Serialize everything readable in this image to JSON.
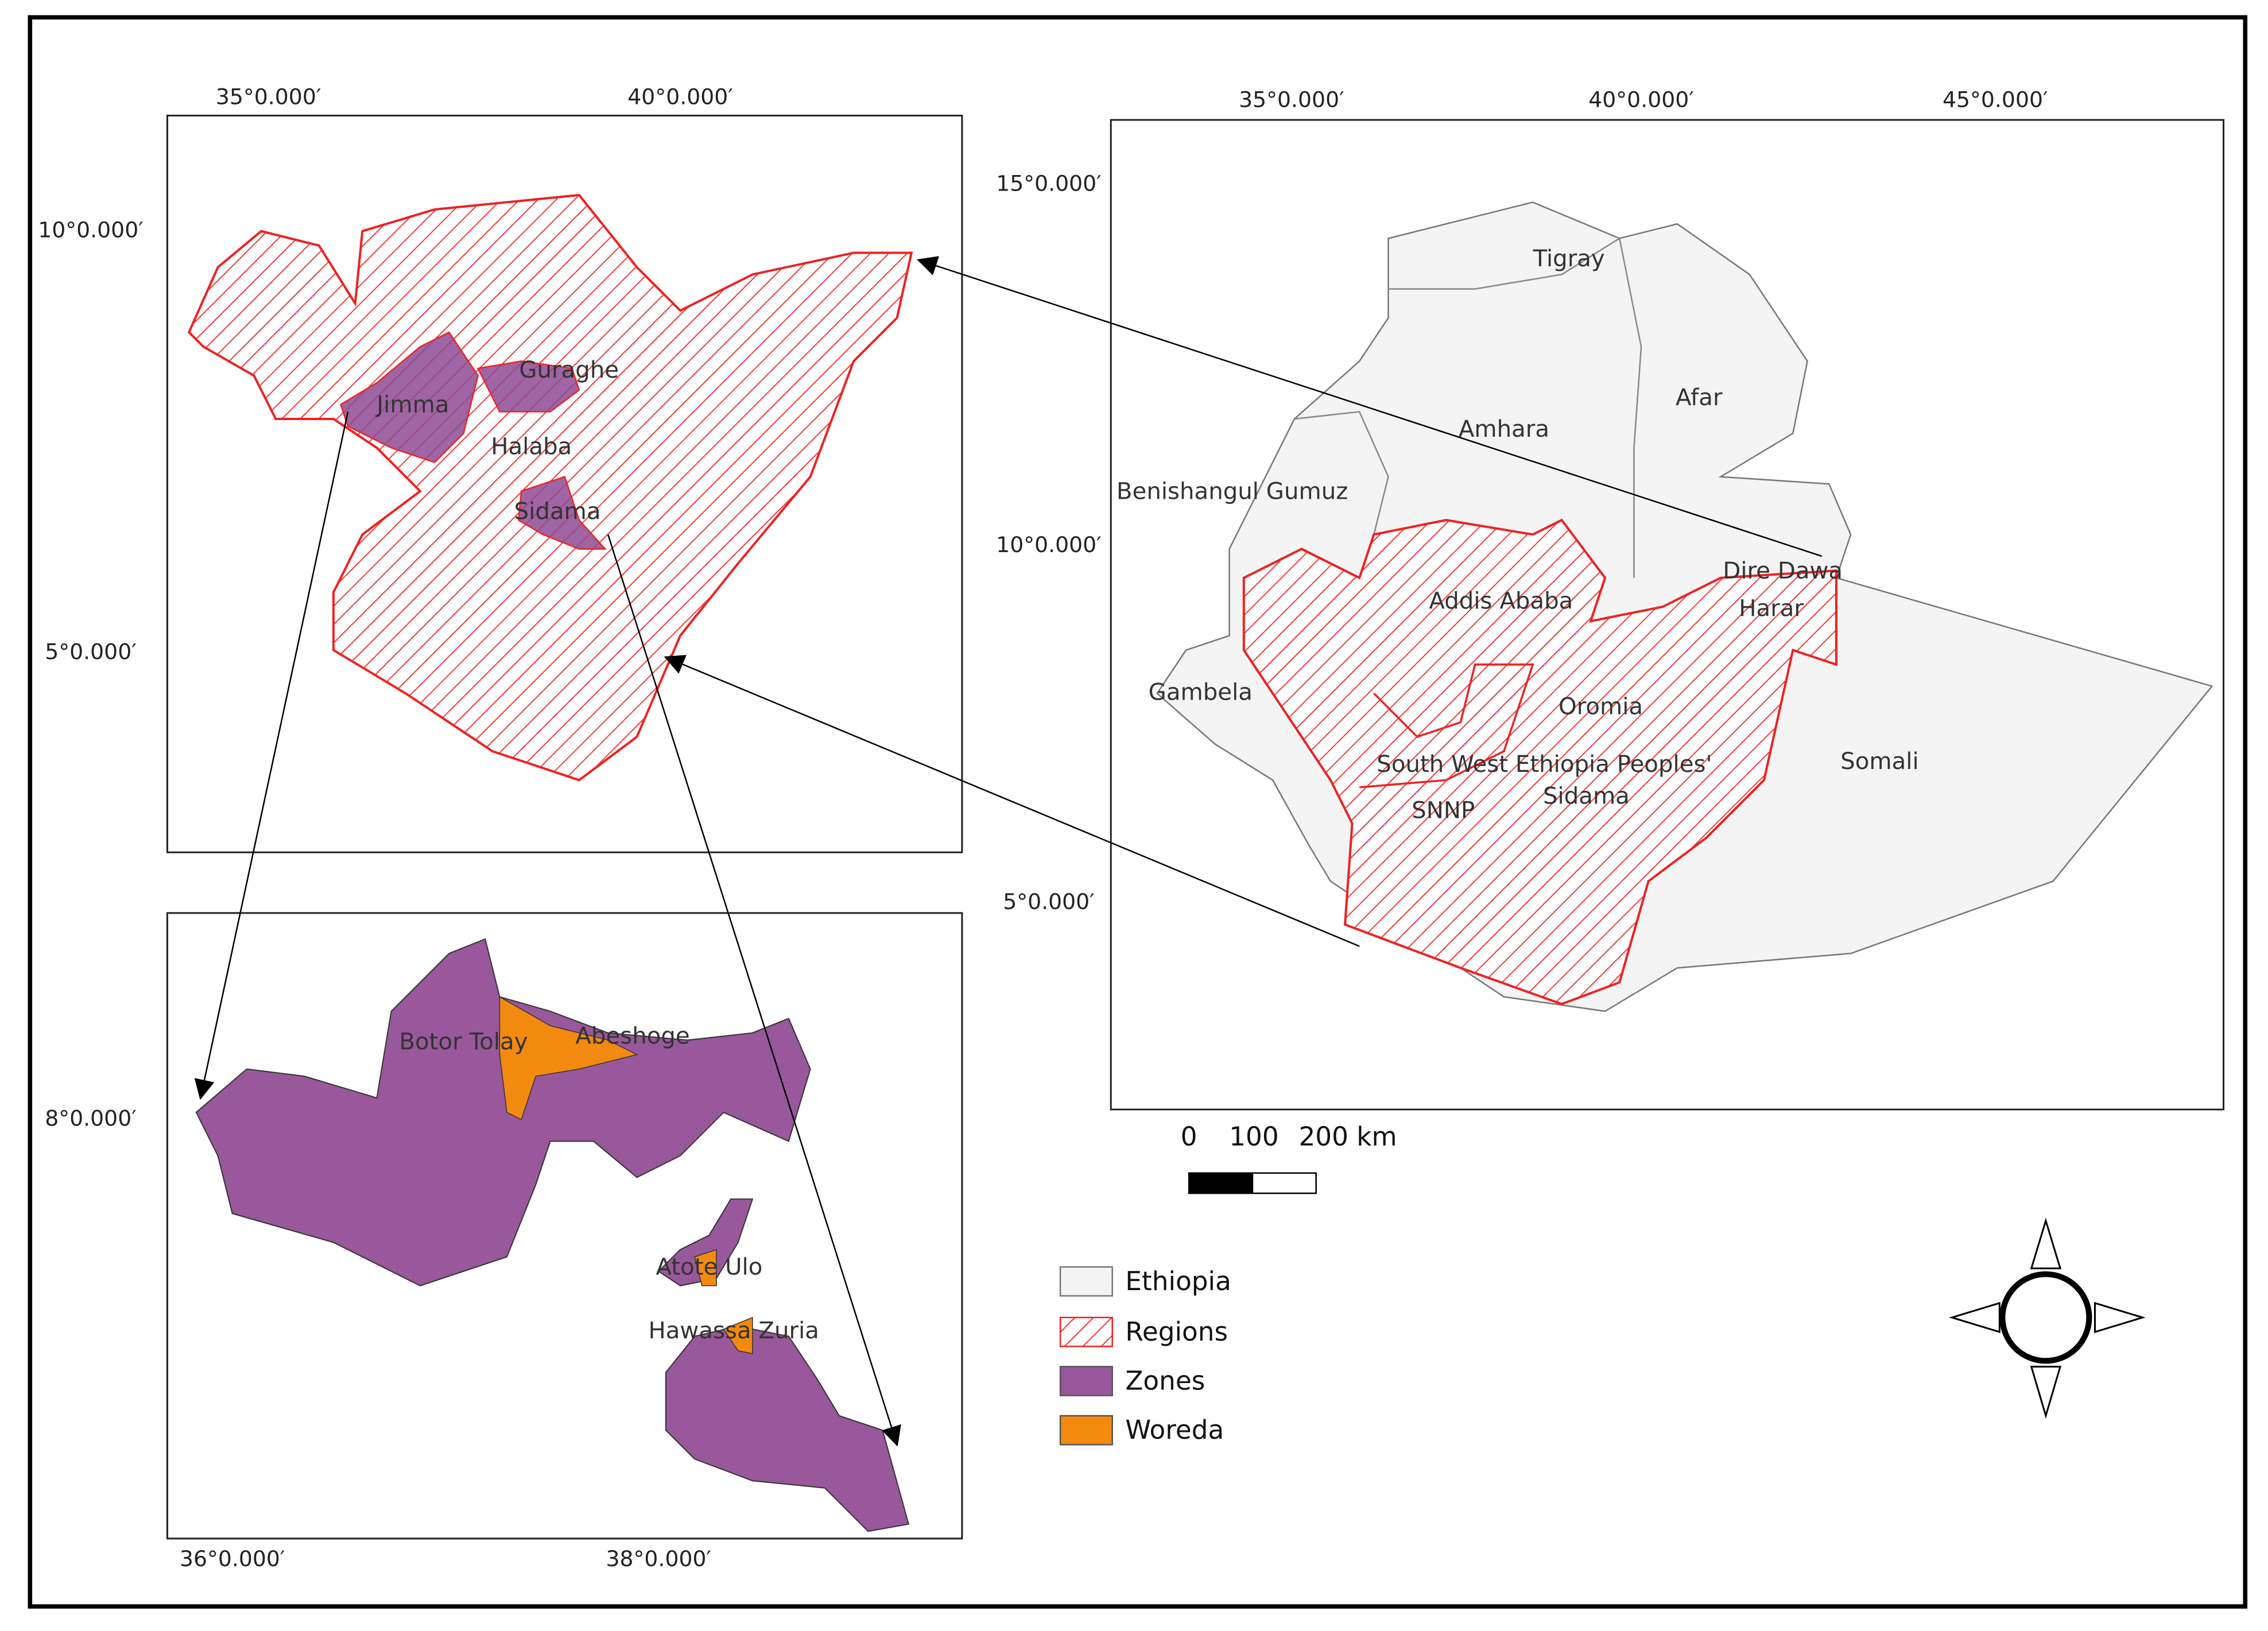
{
  "map_zoom_regions": {
    "lon_labels": [
      "35°0.000′",
      "40°0.000′"
    ],
    "lat_labels": [
      "10°0.000′",
      "5°0.000′"
    ],
    "places": [
      "Guraghe",
      "Jimma",
      "Halaba",
      "Sidama"
    ]
  },
  "map_zoom_woreda": {
    "lon_labels": [
      "36°0.000′",
      "38°0.000′"
    ],
    "lat_labels": [
      "8°0.000′"
    ],
    "places": [
      "Botor Tolay",
      "Abeshoge",
      "Atote Ulo",
      "Hawassa Zuria"
    ]
  },
  "map_ethiopia": {
    "lon_labels": [
      "35°0.000′",
      "40°0.000′",
      "45°0.000′"
    ],
    "lat_labels": [
      "15°0.000′",
      "10°0.000′",
      "5°0.000′"
    ],
    "places": [
      "Tigray",
      "Afar",
      "Amhara",
      "Benishangul Gumuz",
      "Dire Dawa",
      "Harar",
      "Addis Ababa",
      "Oromia",
      "Gambela",
      "Somali",
      "South West Ethiopia Peoples'",
      "SNNP",
      "Sidama"
    ]
  },
  "scale_bar": {
    "labels": [
      "0",
      "100",
      "200 km"
    ]
  },
  "legend": {
    "items": [
      "Ethiopia",
      "Regions",
      "Zones",
      "Woreda"
    ]
  }
}
